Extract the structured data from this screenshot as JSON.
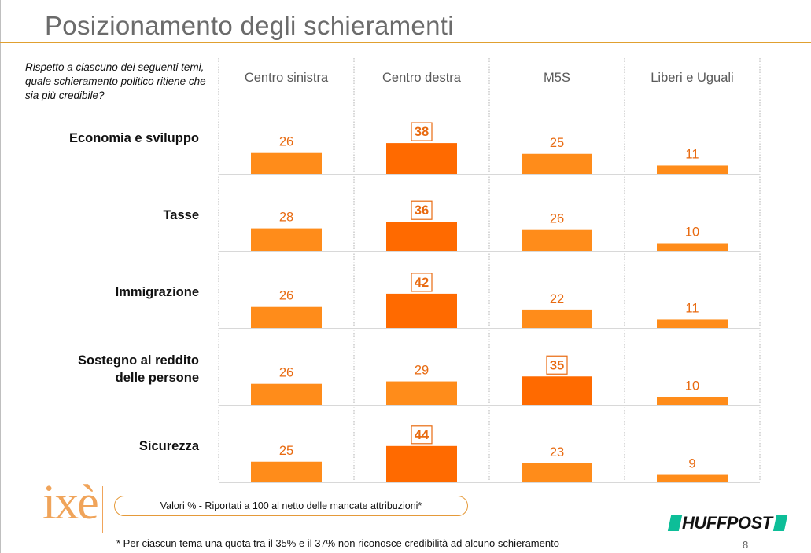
{
  "slide": {
    "title": "Posizionamento degli schieramenti",
    "question": "Rispetto a ciascuno dei seguenti temi, quale schieramento politico ritiene che sia più credibile?",
    "note": "Valori % - Riportati a 100 al netto delle mancate attribuzioni*",
    "footnote": "* Per ciascun tema una quota tra il 35% e il 37% non riconosce credibilità ad alcuno schieramento",
    "page_number": "8",
    "logo_text": "ixè",
    "brand": "HUFFPOST"
  },
  "colors": {
    "bar_normal": "#ff8c1a",
    "bar_highlight": "#ff6a00",
    "value_text": "#e86a10",
    "highlight_border": "#e86a10",
    "title_rule": "#e0a030",
    "grid": "#b0b0b0",
    "brand_accent": "#0dbe98"
  },
  "chart_data": {
    "type": "bar",
    "layout": "small-multiples grid (rows = topics, columns = coalitions)",
    "columns": [
      "Centro sinistra",
      "Centro destra",
      "M5S",
      "Liberi e Uguali"
    ],
    "rows": [
      {
        "label": "Economia e sviluppo",
        "values": [
          26,
          38,
          25,
          11
        ],
        "highlight_index": 1
      },
      {
        "label": "Tasse",
        "values": [
          28,
          36,
          26,
          10
        ],
        "highlight_index": 1
      },
      {
        "label": "Immigrazione",
        "values": [
          26,
          42,
          22,
          11
        ],
        "highlight_index": 1
      },
      {
        "label": "Sostegno al reddito delle persone",
        "values": [
          26,
          29,
          35,
          10
        ],
        "highlight_index": 2
      },
      {
        "label": "Sicurezza",
        "values": [
          25,
          44,
          23,
          9
        ],
        "highlight_index": 1
      }
    ],
    "unit": "%",
    "grid": true,
    "legend": "none"
  }
}
